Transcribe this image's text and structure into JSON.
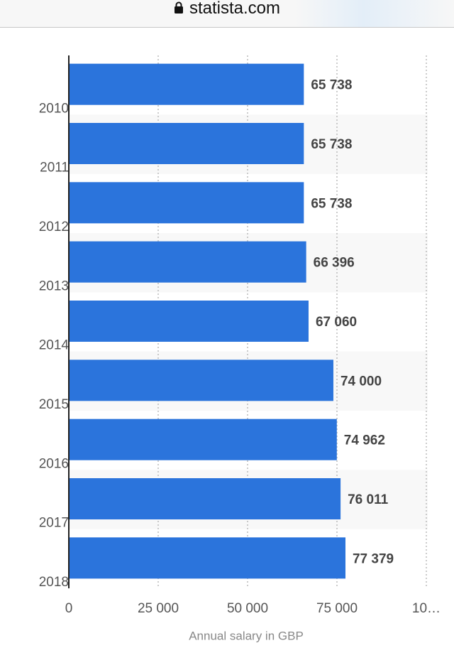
{
  "browser": {
    "url": "statista.com"
  },
  "chart_data": {
    "type": "bar",
    "orientation": "horizontal",
    "x_label": "Annual salary in GBP",
    "categories": [
      "2010",
      "2011",
      "2012",
      "2013",
      "2014",
      "2015",
      "2016",
      "2017",
      "2018"
    ],
    "values": [
      65738,
      65738,
      65738,
      66396,
      67060,
      74000,
      74962,
      76011,
      77379
    ],
    "value_labels": [
      "65 738",
      "65 738",
      "65 738",
      "66 396",
      "67 060",
      "74 000",
      "74 962",
      "76 011",
      "77 379"
    ],
    "color": "#2b74dc",
    "xlim": [
      0,
      100000
    ],
    "xticks": [
      0,
      {
        "value": 25000,
        "label": "25 000"
      },
      {
        "value": 50000,
        "label": "50 000"
      },
      {
        "value": 75000,
        "label": "75 000"
      },
      {
        "value": 100000,
        "label": "10…"
      }
    ],
    "grid": true
  }
}
